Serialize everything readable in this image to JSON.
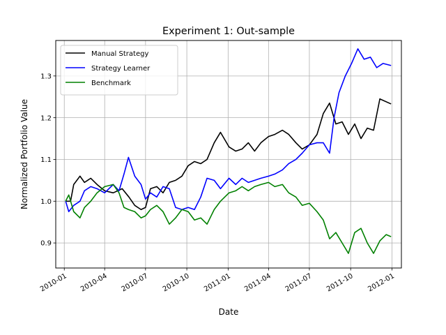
{
  "chart_data": {
    "type": "line",
    "title": "Experiment 1: Out-sample",
    "xlabel": "Date",
    "ylabel": "Normalized Portfolio Value",
    "xlim": [
      "2009-12-13",
      "2012-01-22"
    ],
    "ylim": [
      0.84,
      1.385
    ],
    "x_ticks": [
      "2010-01-01",
      "2010-04-01",
      "2010-07-01",
      "2010-10-01",
      "2011-01-01",
      "2011-04-01",
      "2011-07-01",
      "2011-10-01",
      "2012-01-01"
    ],
    "x_tick_labels": [
      "2010-01",
      "2010-04",
      "2010-07",
      "2010-10",
      "2011-01",
      "2011-04",
      "2011-07",
      "2011-10",
      "2012-01"
    ],
    "y_ticks": [
      0.9,
      1.0,
      1.1,
      1.2,
      1.3
    ],
    "y_tick_labels": [
      "0.9",
      "1.0",
      "1.1",
      "1.2",
      "1.3"
    ],
    "grid": true,
    "legend_position": "top-left",
    "series": [
      {
        "name": "Manual Strategy",
        "color": "#000000",
        "points": [
          [
            "2010-01-04",
            1.0
          ],
          [
            "2010-01-15",
            1.0
          ],
          [
            "2010-01-22",
            1.04
          ],
          [
            "2010-02-05",
            1.06
          ],
          [
            "2010-02-15",
            1.045
          ],
          [
            "2010-03-01",
            1.055
          ],
          [
            "2010-03-15",
            1.04
          ],
          [
            "2010-04-01",
            1.025
          ],
          [
            "2010-04-20",
            1.02
          ],
          [
            "2010-05-10",
            1.03
          ],
          [
            "2010-05-25",
            1.01
          ],
          [
            "2010-06-07",
            0.99
          ],
          [
            "2010-06-21",
            0.98
          ],
          [
            "2010-07-01",
            0.985
          ],
          [
            "2010-07-12",
            1.03
          ],
          [
            "2010-07-26",
            1.035
          ],
          [
            "2010-08-09",
            1.02
          ],
          [
            "2010-08-23",
            1.045
          ],
          [
            "2010-09-06",
            1.05
          ],
          [
            "2010-09-20",
            1.06
          ],
          [
            "2010-10-04",
            1.085
          ],
          [
            "2010-10-18",
            1.095
          ],
          [
            "2010-11-01",
            1.09
          ],
          [
            "2010-11-15",
            1.1
          ],
          [
            "2010-12-01",
            1.14
          ],
          [
            "2010-12-15",
            1.165
          ],
          [
            "2011-01-03",
            1.13
          ],
          [
            "2011-01-18",
            1.12
          ],
          [
            "2011-02-01",
            1.125
          ],
          [
            "2011-02-15",
            1.14
          ],
          [
            "2011-03-01",
            1.12
          ],
          [
            "2011-03-15",
            1.14
          ],
          [
            "2011-04-01",
            1.155
          ],
          [
            "2011-04-15",
            1.16
          ],
          [
            "2011-05-02",
            1.17
          ],
          [
            "2011-05-16",
            1.16
          ],
          [
            "2011-06-01",
            1.14
          ],
          [
            "2011-06-15",
            1.125
          ],
          [
            "2011-07-01",
            1.135
          ],
          [
            "2011-07-18",
            1.16
          ],
          [
            "2011-08-01",
            1.21
          ],
          [
            "2011-08-15",
            1.235
          ],
          [
            "2011-08-29",
            1.185
          ],
          [
            "2011-09-12",
            1.19
          ],
          [
            "2011-09-26",
            1.16
          ],
          [
            "2011-10-10",
            1.185
          ],
          [
            "2011-10-24",
            1.15
          ],
          [
            "2011-11-07",
            1.175
          ],
          [
            "2011-11-21",
            1.17
          ],
          [
            "2011-12-05",
            1.245
          ],
          [
            "2011-12-30",
            1.233
          ]
        ]
      },
      {
        "name": "Strategy Learner",
        "color": "#0000ff",
        "points": [
          [
            "2010-01-04",
            1.0
          ],
          [
            "2010-01-11",
            0.975
          ],
          [
            "2010-01-22",
            0.99
          ],
          [
            "2010-02-05",
            1.0
          ],
          [
            "2010-02-15",
            1.025
          ],
          [
            "2010-03-01",
            1.035
          ],
          [
            "2010-03-15",
            1.03
          ],
          [
            "2010-04-01",
            1.02
          ],
          [
            "2010-04-20",
            1.04
          ],
          [
            "2010-05-03",
            1.025
          ],
          [
            "2010-05-14",
            1.065
          ],
          [
            "2010-05-24",
            1.105
          ],
          [
            "2010-06-07",
            1.06
          ],
          [
            "2010-06-21",
            1.04
          ],
          [
            "2010-07-01",
            1.005
          ],
          [
            "2010-07-12",
            1.02
          ],
          [
            "2010-07-26",
            1.01
          ],
          [
            "2010-08-09",
            1.035
          ],
          [
            "2010-08-23",
            1.03
          ],
          [
            "2010-09-06",
            0.985
          ],
          [
            "2010-09-20",
            0.98
          ],
          [
            "2010-10-04",
            0.985
          ],
          [
            "2010-10-18",
            0.98
          ],
          [
            "2010-11-01",
            1.01
          ],
          [
            "2010-11-15",
            1.055
          ],
          [
            "2010-12-01",
            1.05
          ],
          [
            "2010-12-15",
            1.03
          ],
          [
            "2011-01-03",
            1.055
          ],
          [
            "2011-01-18",
            1.04
          ],
          [
            "2011-02-01",
            1.055
          ],
          [
            "2011-02-15",
            1.045
          ],
          [
            "2011-03-01",
            1.05
          ],
          [
            "2011-03-15",
            1.055
          ],
          [
            "2011-04-01",
            1.06
          ],
          [
            "2011-04-15",
            1.065
          ],
          [
            "2011-05-02",
            1.075
          ],
          [
            "2011-05-16",
            1.09
          ],
          [
            "2011-06-01",
            1.1
          ],
          [
            "2011-06-15",
            1.115
          ],
          [
            "2011-07-01",
            1.135
          ],
          [
            "2011-07-18",
            1.14
          ],
          [
            "2011-08-01",
            1.14
          ],
          [
            "2011-08-15",
            1.115
          ],
          [
            "2011-08-25",
            1.2
          ],
          [
            "2011-09-05",
            1.26
          ],
          [
            "2011-09-19",
            1.3
          ],
          [
            "2011-10-03",
            1.33
          ],
          [
            "2011-10-17",
            1.365
          ],
          [
            "2011-10-31",
            1.34
          ],
          [
            "2011-11-14",
            1.345
          ],
          [
            "2011-11-28",
            1.32
          ],
          [
            "2011-12-12",
            1.33
          ],
          [
            "2011-12-30",
            1.325
          ]
        ]
      },
      {
        "name": "Benchmark",
        "color": "#008000",
        "points": [
          [
            "2010-01-04",
            1.0
          ],
          [
            "2010-01-11",
            1.015
          ],
          [
            "2010-01-22",
            0.975
          ],
          [
            "2010-02-05",
            0.96
          ],
          [
            "2010-02-15",
            0.985
          ],
          [
            "2010-03-01",
            1.0
          ],
          [
            "2010-03-15",
            1.02
          ],
          [
            "2010-04-01",
            1.035
          ],
          [
            "2010-04-20",
            1.04
          ],
          [
            "2010-05-03",
            1.02
          ],
          [
            "2010-05-14",
            0.985
          ],
          [
            "2010-05-24",
            0.98
          ],
          [
            "2010-06-07",
            0.975
          ],
          [
            "2010-06-21",
            0.96
          ],
          [
            "2010-07-01",
            0.965
          ],
          [
            "2010-07-12",
            0.98
          ],
          [
            "2010-07-26",
            0.99
          ],
          [
            "2010-08-09",
            0.975
          ],
          [
            "2010-08-23",
            0.945
          ],
          [
            "2010-09-06",
            0.96
          ],
          [
            "2010-09-20",
            0.98
          ],
          [
            "2010-10-04",
            0.975
          ],
          [
            "2010-10-18",
            0.955
          ],
          [
            "2010-11-01",
            0.96
          ],
          [
            "2010-11-15",
            0.945
          ],
          [
            "2010-12-01",
            0.98
          ],
          [
            "2010-12-15",
            1.0
          ],
          [
            "2011-01-03",
            1.02
          ],
          [
            "2011-01-18",
            1.025
          ],
          [
            "2011-02-01",
            1.035
          ],
          [
            "2011-02-15",
            1.025
          ],
          [
            "2011-03-01",
            1.035
          ],
          [
            "2011-03-15",
            1.04
          ],
          [
            "2011-04-01",
            1.045
          ],
          [
            "2011-04-15",
            1.035
          ],
          [
            "2011-05-02",
            1.04
          ],
          [
            "2011-05-16",
            1.02
          ],
          [
            "2011-06-01",
            1.01
          ],
          [
            "2011-06-15",
            0.99
          ],
          [
            "2011-07-01",
            0.995
          ],
          [
            "2011-07-18",
            0.975
          ],
          [
            "2011-08-01",
            0.955
          ],
          [
            "2011-08-15",
            0.91
          ],
          [
            "2011-08-29",
            0.925
          ],
          [
            "2011-09-12",
            0.9
          ],
          [
            "2011-09-26",
            0.875
          ],
          [
            "2011-10-10",
            0.925
          ],
          [
            "2011-10-24",
            0.935
          ],
          [
            "2011-11-07",
            0.9
          ],
          [
            "2011-11-21",
            0.875
          ],
          [
            "2011-12-05",
            0.905
          ],
          [
            "2011-12-19",
            0.92
          ],
          [
            "2011-12-30",
            0.915
          ]
        ]
      }
    ]
  }
}
